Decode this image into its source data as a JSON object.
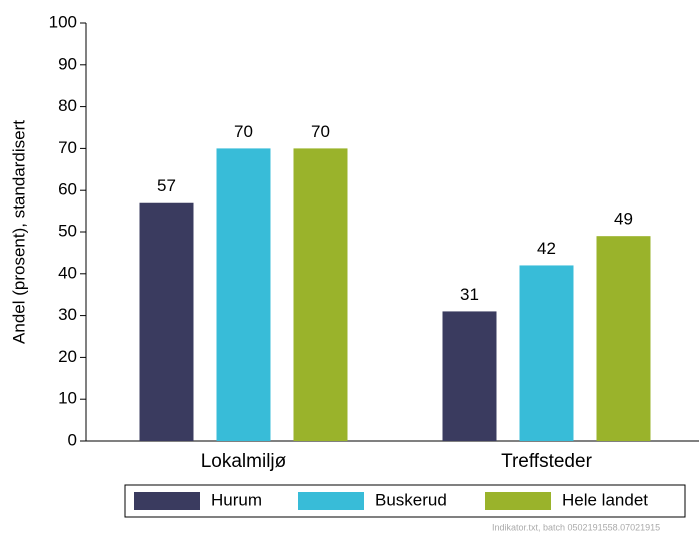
{
  "chart_data": {
    "type": "bar",
    "y_label": "Andel (prosent), standardisert",
    "categories": [
      "Lokalmiljø",
      "Treffsteder"
    ],
    "series": [
      {
        "name": "Hurum",
        "color": "#3a3b5f",
        "values": [
          57,
          31
        ]
      },
      {
        "name": "Buskerud",
        "color": "#38bcd8",
        "values": [
          70,
          42
        ]
      },
      {
        "name": "Hele landet",
        "color": "#9ab32b",
        "values": [
          70,
          49
        ]
      }
    ],
    "ylim": [
      0,
      100
    ],
    "yticks": [
      0,
      10,
      20,
      30,
      40,
      50,
      60,
      70,
      80,
      90,
      100
    ],
    "grid": false,
    "legend": "bottom",
    "footnote": "Indikator.txt, batch 0502191558.07021915"
  }
}
